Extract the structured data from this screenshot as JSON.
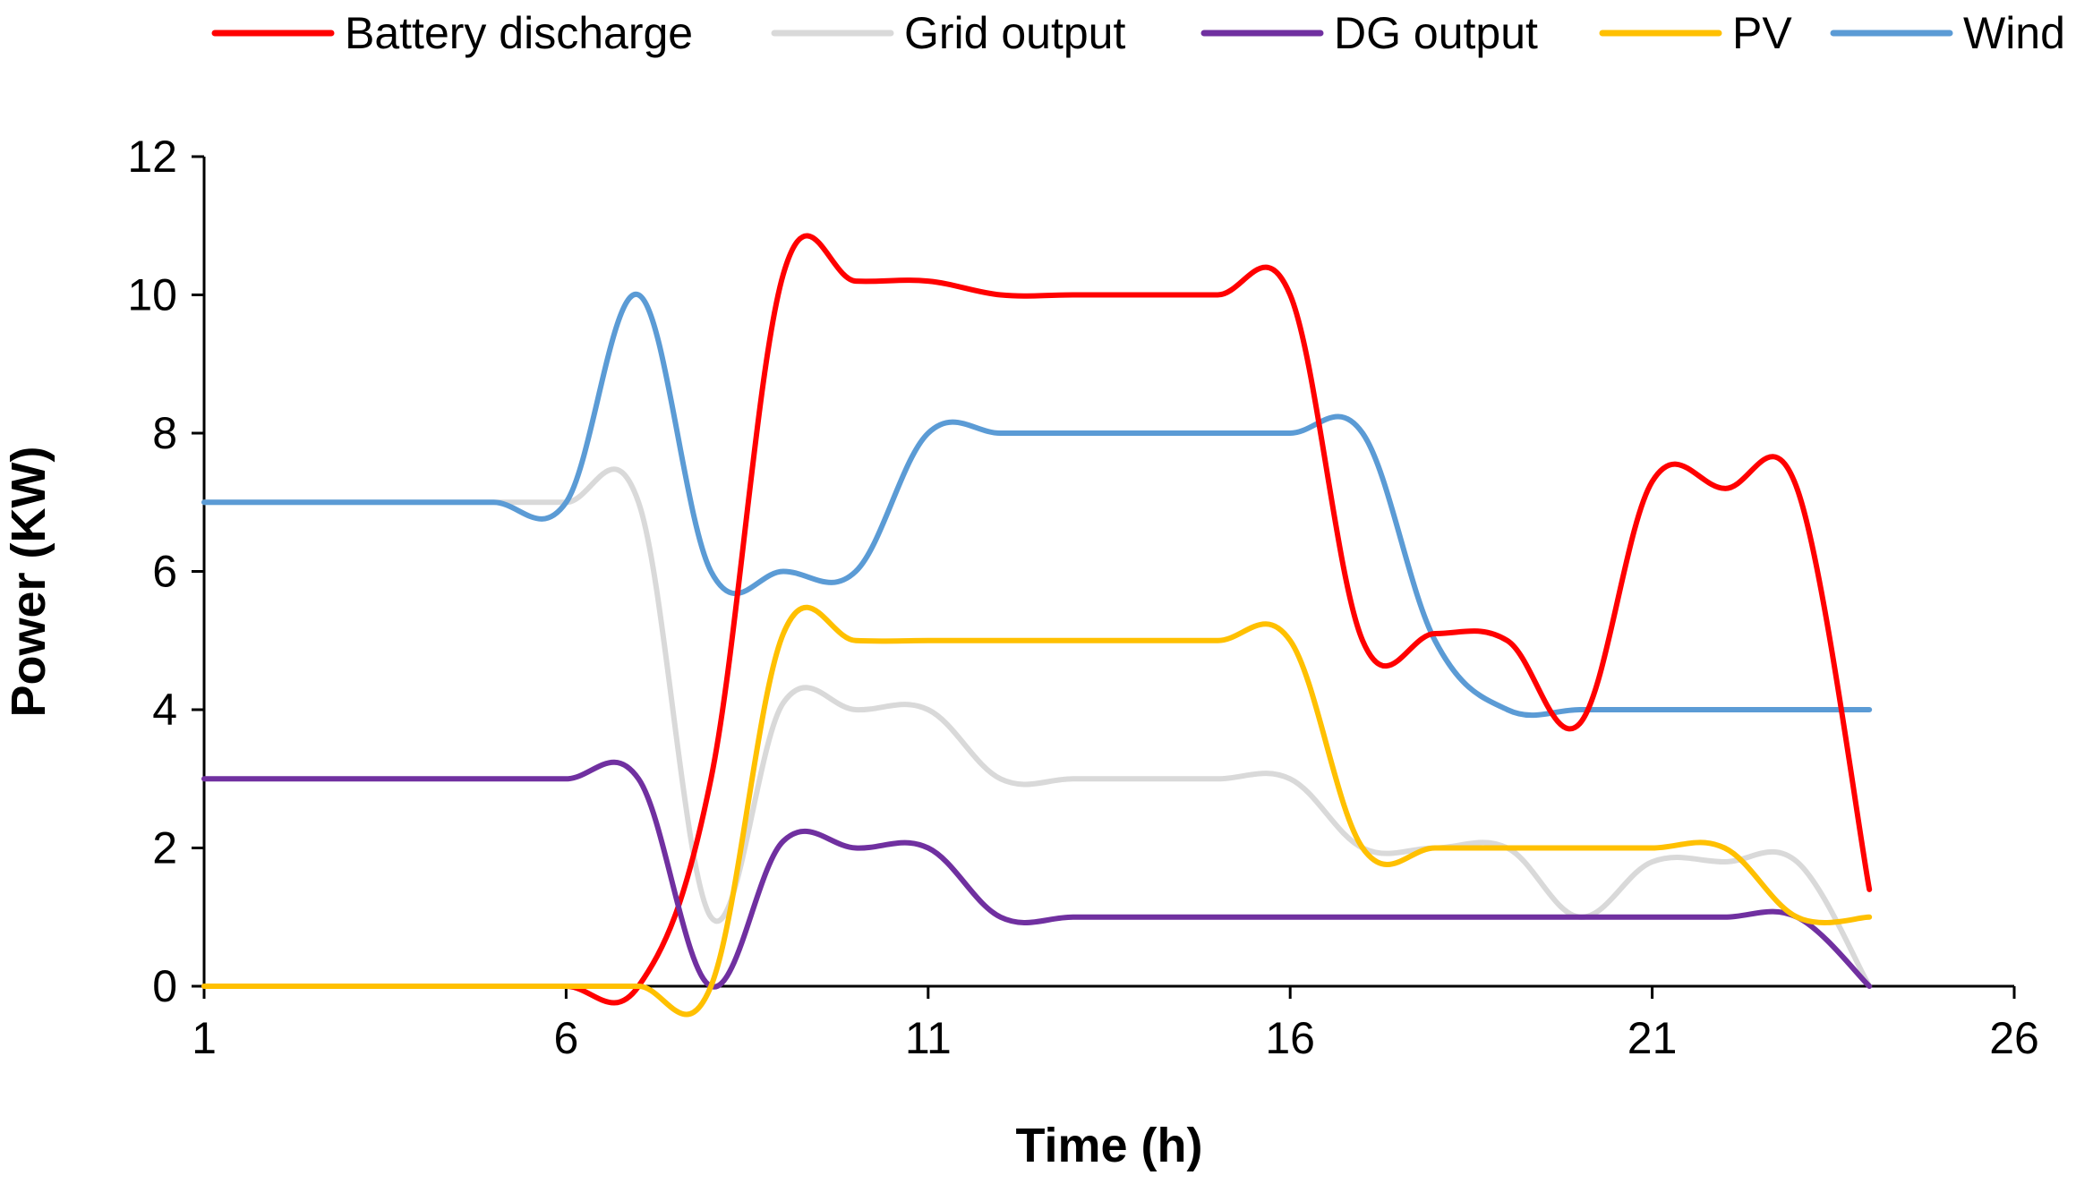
{
  "chart_data": {
    "type": "line",
    "title": "",
    "xlabel": "Time (h)",
    "ylabel": "Power (KW)",
    "xlim": [
      1,
      26
    ],
    "ylim": [
      0,
      12
    ],
    "xticks": [
      1,
      6,
      11,
      16,
      21,
      26
    ],
    "yticks": [
      0,
      2,
      4,
      6,
      8,
      10,
      12
    ],
    "grid": false,
    "legend_position": "top",
    "x": [
      1,
      2,
      3,
      4,
      5,
      6,
      7,
      8,
      9,
      10,
      11,
      12,
      13,
      14,
      15,
      16,
      17,
      18,
      19,
      20,
      21,
      22,
      23,
      24
    ],
    "series": [
      {
        "name": "Battery discharge",
        "color": "#ff0000",
        "values": [
          0,
          0,
          0,
          0,
          0,
          0,
          0,
          3,
          10.3,
          10.2,
          10.2,
          10,
          10,
          10,
          10,
          10,
          5,
          5.1,
          5,
          3.8,
          7.3,
          7.2,
          7.2,
          1.4
        ]
      },
      {
        "name": "Grid output",
        "color": "#d9d9d9",
        "values": [
          7,
          7,
          7,
          7,
          7,
          7,
          7,
          1,
          4.1,
          4,
          4,
          3,
          3,
          3,
          3,
          3,
          2,
          2,
          2,
          1,
          1.8,
          1.8,
          1.8,
          0
        ]
      },
      {
        "name": "DG output",
        "color": "#7030a0",
        "values": [
          3,
          3,
          3,
          3,
          3,
          3,
          3,
          0,
          2.1,
          2,
          2,
          1,
          1,
          1,
          1,
          1,
          1,
          1,
          1,
          1,
          1,
          1,
          1,
          0
        ]
      },
      {
        "name": "PV",
        "color": "#ffc000",
        "values": [
          0,
          0,
          0,
          0,
          0,
          0,
          0,
          0,
          5.1,
          5,
          5,
          5,
          5,
          5,
          5,
          5,
          2,
          2,
          2,
          2,
          2,
          2,
          1,
          1
        ]
      },
      {
        "name": "Wind",
        "color": "#5b9bd5",
        "values": [
          7,
          7,
          7,
          7,
          7,
          7,
          10,
          6,
          6,
          6,
          8,
          8,
          8,
          8,
          8,
          8,
          8,
          5,
          4,
          4,
          4,
          4,
          4,
          4
        ]
      }
    ]
  }
}
